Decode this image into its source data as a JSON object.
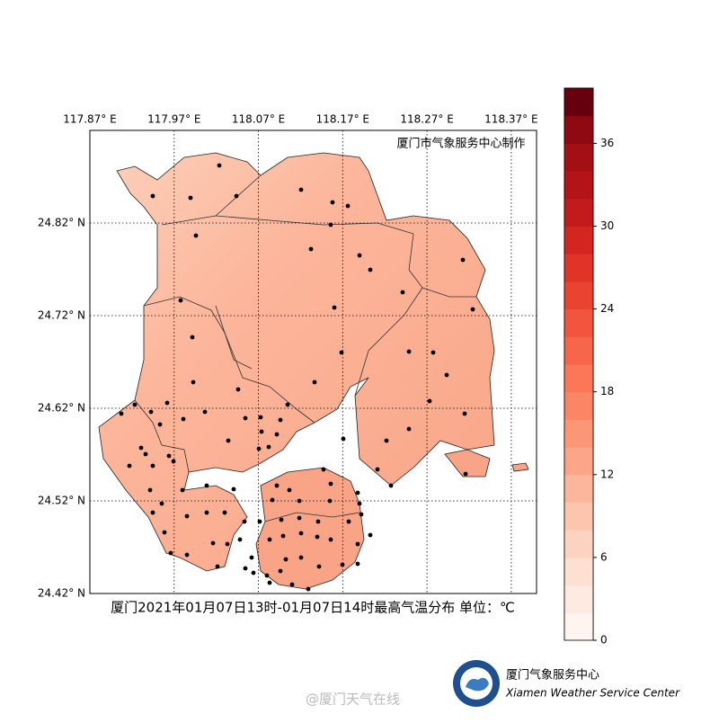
{
  "chart_data": {
    "type": "map",
    "title": "厦门2021年01月07日13时-01月07日14时最高气温分布 单位：℃",
    "credit": "厦门市气象服务中心制作",
    "xlim": [
      117.87,
      118.4
    ],
    "xticks": [
      {
        "value": 117.87,
        "label": "117.87° E"
      },
      {
        "value": 117.97,
        "label": "117.97° E"
      },
      {
        "value": 118.07,
        "label": "118.07° E"
      },
      {
        "value": 118.17,
        "label": "118.17° E"
      },
      {
        "value": 118.27,
        "label": "118.27° E"
      },
      {
        "value": 118.37,
        "label": "118.37° E"
      }
    ],
    "ylim": [
      24.42,
      24.92
    ],
    "yticks": [
      {
        "value": 24.42,
        "label": "24.42° N"
      },
      {
        "value": 24.52,
        "label": "24.52° N"
      },
      {
        "value": 24.62,
        "label": "24.62° N"
      },
      {
        "value": 24.72,
        "label": "24.72° N"
      },
      {
        "value": 24.82,
        "label": "24.82° N"
      }
    ],
    "grid": true,
    "colorbar": {
      "lim": [
        0,
        40
      ],
      "ticks": [
        0,
        6,
        12,
        18,
        24,
        30,
        36
      ],
      "colors": [
        "#fff5f0",
        "#feeae1",
        "#fde0d2",
        "#fcd3c1",
        "#fcc5ae",
        "#fcb69b",
        "#fca588",
        "#fc9677",
        "#fb8666",
        "#fb7757",
        "#f7664a",
        "#f2553e",
        "#eb4331",
        "#e03428",
        "#d42620",
        "#c31a1b",
        "#b41318",
        "#a30f15",
        "#8e0912",
        "#67000d"
      ]
    }
  },
  "footer": {
    "logo_name": "厦门气象服务中心",
    "logo_name_en": "Xiamen Weather Service Center",
    "watermark": "@厦门天气在线"
  }
}
